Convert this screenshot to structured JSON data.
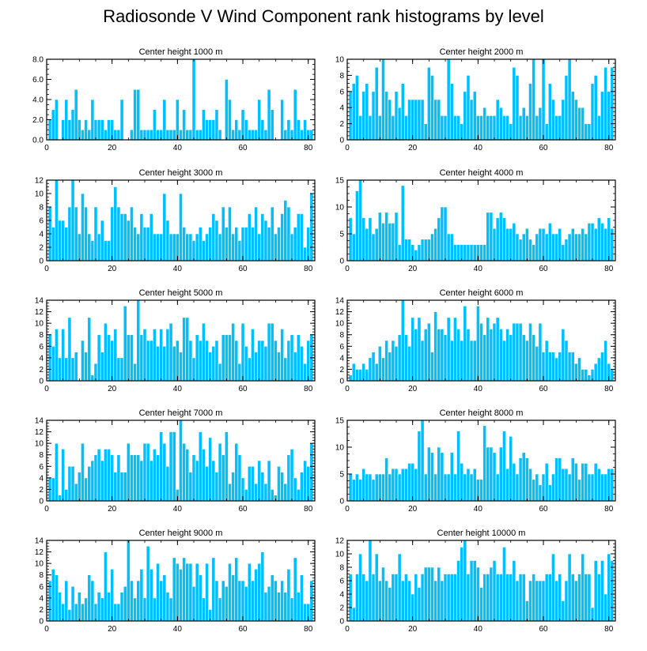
{
  "title": "Radiosonde V Wind Component rank histograms by level",
  "colors": {
    "bar": "#00bfff",
    "bar_edge": "#ffffff",
    "axis": "#000000"
  },
  "chart_data": [
    {
      "type": "bar",
      "title": "Center height 1000 m",
      "x_start": 1,
      "xlim": [
        0,
        82
      ],
      "ylim": [
        0,
        8
      ],
      "xticks": [
        0,
        20,
        40,
        60,
        80
      ],
      "yticks": [
        0,
        2,
        4,
        6,
        8
      ],
      "ytick_labels": [
        "0.0",
        "2.0",
        "4.0",
        "6.0",
        "8.0"
      ],
      "values": [
        2,
        3,
        4,
        0,
        2,
        4,
        2,
        3,
        5,
        2,
        1,
        2,
        1,
        4,
        2,
        2,
        2,
        1,
        2,
        2,
        1,
        1,
        4,
        0,
        0,
        1,
        5,
        5,
        1,
        1,
        1,
        1,
        3,
        1,
        1,
        4,
        1,
        1,
        1,
        4,
        1,
        3,
        1,
        1,
        8,
        1,
        1,
        3,
        2,
        2,
        2,
        3,
        1,
        0,
        6,
        4,
        1,
        2,
        1,
        3,
        2,
        1,
        1,
        1,
        4,
        2,
        1,
        5,
        3,
        0,
        0,
        4,
        1,
        2,
        1,
        5,
        2,
        1,
        2,
        1,
        1
      ]
    },
    {
      "type": "bar",
      "title": "Center height 2000 m",
      "x_start": 1,
      "xlim": [
        0,
        82
      ],
      "ylim": [
        0,
        10
      ],
      "xticks": [
        0,
        20,
        40,
        60,
        80
      ],
      "yticks": [
        0,
        2,
        4,
        6,
        8,
        10
      ],
      "ytick_labels": [
        "0",
        "2",
        "4",
        "6",
        "8",
        "10"
      ],
      "values": [
        6,
        7,
        8,
        3,
        6,
        7,
        3,
        6,
        9,
        3,
        10,
        6,
        5,
        3,
        6,
        4,
        7,
        3,
        5,
        5,
        5,
        5,
        5,
        2,
        9,
        8,
        5,
        5,
        3,
        3,
        10,
        7,
        3,
        3,
        2,
        6,
        8,
        5,
        6,
        3,
        3,
        4,
        3,
        3,
        3,
        5,
        4,
        3,
        3,
        2,
        9,
        8,
        3,
        4,
        3,
        7,
        10,
        3,
        4,
        10,
        2,
        7,
        5,
        3,
        3,
        5,
        8,
        10,
        6,
        5,
        4,
        4,
        2,
        2,
        7,
        8,
        3,
        6,
        9,
        6,
        9
      ]
    },
    {
      "type": "bar",
      "title": "Center height 3000 m",
      "x_start": 1,
      "xlim": [
        0,
        82
      ],
      "ylim": [
        0,
        12
      ],
      "xticks": [
        0,
        20,
        40,
        60,
        80
      ],
      "yticks": [
        0,
        2,
        4,
        6,
        8,
        10,
        12
      ],
      "ytick_labels": [
        "0",
        "2",
        "4",
        "6",
        "8",
        "10",
        "12"
      ],
      "values": [
        8,
        5,
        12,
        6,
        6,
        5,
        8,
        12,
        8,
        4,
        10,
        8,
        4,
        3,
        8,
        4,
        6,
        3,
        3,
        8,
        11,
        8,
        7,
        7,
        6,
        8,
        5,
        4,
        7,
        5,
        5,
        7,
        4,
        4,
        4,
        10,
        6,
        4,
        4,
        4,
        10,
        5,
        4,
        4,
        3,
        4,
        5,
        3,
        4,
        5,
        7,
        6,
        4,
        8,
        5,
        8,
        4,
        5,
        3,
        5,
        5,
        7,
        5,
        8,
        4,
        7,
        6,
        5,
        8,
        4,
        5,
        7,
        9,
        8,
        4,
        5,
        7,
        7,
        2,
        5,
        10
      ]
    },
    {
      "type": "bar",
      "title": "Center height 4000 m",
      "x_start": 1,
      "xlim": [
        0,
        82
      ],
      "ylim": [
        0,
        15
      ],
      "xticks": [
        0,
        20,
        40,
        60,
        80
      ],
      "yticks": [
        0,
        5,
        10,
        15
      ],
      "ytick_labels": [
        "0",
        "5",
        "10",
        "15"
      ],
      "values": [
        8,
        5,
        13,
        15,
        8,
        6,
        8,
        5,
        6,
        9,
        7,
        9,
        7,
        7,
        9,
        3,
        14,
        4,
        4,
        3,
        2,
        3,
        4,
        4,
        4,
        5,
        6,
        8,
        10,
        10,
        5,
        5,
        3,
        3,
        3,
        3,
        3,
        3,
        3,
        3,
        3,
        3,
        9,
        9,
        6,
        8,
        9,
        8,
        6,
        6,
        7,
        5,
        4,
        5,
        6,
        4,
        3,
        5,
        6,
        6,
        5,
        7,
        5,
        5,
        6,
        3,
        4,
        5,
        6,
        5,
        5,
        6,
        5,
        7,
        7,
        6,
        8,
        7,
        6,
        8,
        6
      ]
    },
    {
      "type": "bar",
      "title": "Center height 5000 m",
      "x_start": 1,
      "xlim": [
        0,
        82
      ],
      "ylim": [
        0,
        14
      ],
      "xticks": [
        0,
        20,
        40,
        60,
        80
      ],
      "yticks": [
        0,
        2,
        4,
        6,
        8,
        10,
        12,
        14
      ],
      "ytick_labels": [
        "0",
        "2",
        "4",
        "6",
        "8",
        "10",
        "12",
        "14"
      ],
      "values": [
        8,
        6,
        9,
        4,
        9,
        4,
        11,
        4,
        5,
        0,
        7,
        5,
        11,
        1,
        3,
        8,
        5,
        10,
        8,
        7,
        9,
        4,
        4,
        13,
        8,
        8,
        3,
        14,
        8,
        9,
        7,
        7,
        9,
        6,
        9,
        6,
        9,
        10,
        6,
        7,
        5,
        11,
        11,
        7,
        4,
        8,
        7,
        10,
        7,
        5,
        6,
        7,
        3,
        8,
        8,
        8,
        10,
        7,
        3,
        10,
        6,
        4,
        9,
        5,
        7,
        7,
        6,
        10,
        10,
        7,
        5,
        9,
        4,
        7,
        8,
        5,
        8,
        6,
        3,
        7,
        8
      ]
    },
    {
      "type": "bar",
      "title": "Center height 6000 m",
      "x_start": 1,
      "xlim": [
        0,
        82
      ],
      "ylim": [
        0,
        14
      ],
      "xticks": [
        0,
        20,
        40,
        60,
        80
      ],
      "yticks": [
        0,
        2,
        4,
        6,
        8,
        10,
        12,
        14
      ],
      "ytick_labels": [
        "0",
        "2",
        "4",
        "6",
        "8",
        "10",
        "12",
        "14"
      ],
      "values": [
        1,
        3,
        2,
        2,
        3,
        2,
        4,
        5,
        3,
        6,
        4,
        7,
        5,
        7,
        6,
        8,
        14,
        8,
        6,
        11,
        9,
        11,
        7,
        9,
        10,
        5,
        12,
        9,
        9,
        8,
        11,
        7,
        11,
        9,
        7,
        13,
        9,
        7,
        7,
        13,
        10,
        8,
        11,
        9,
        10,
        11,
        9,
        7,
        9,
        8,
        10,
        10,
        10,
        8,
        7,
        10,
        8,
        6,
        10,
        5,
        7,
        5,
        5,
        4,
        5,
        9,
        7,
        5,
        5,
        3,
        4,
        2,
        2,
        1,
        2,
        3,
        4,
        5,
        7,
        3,
        2
      ]
    }
  ]
}
